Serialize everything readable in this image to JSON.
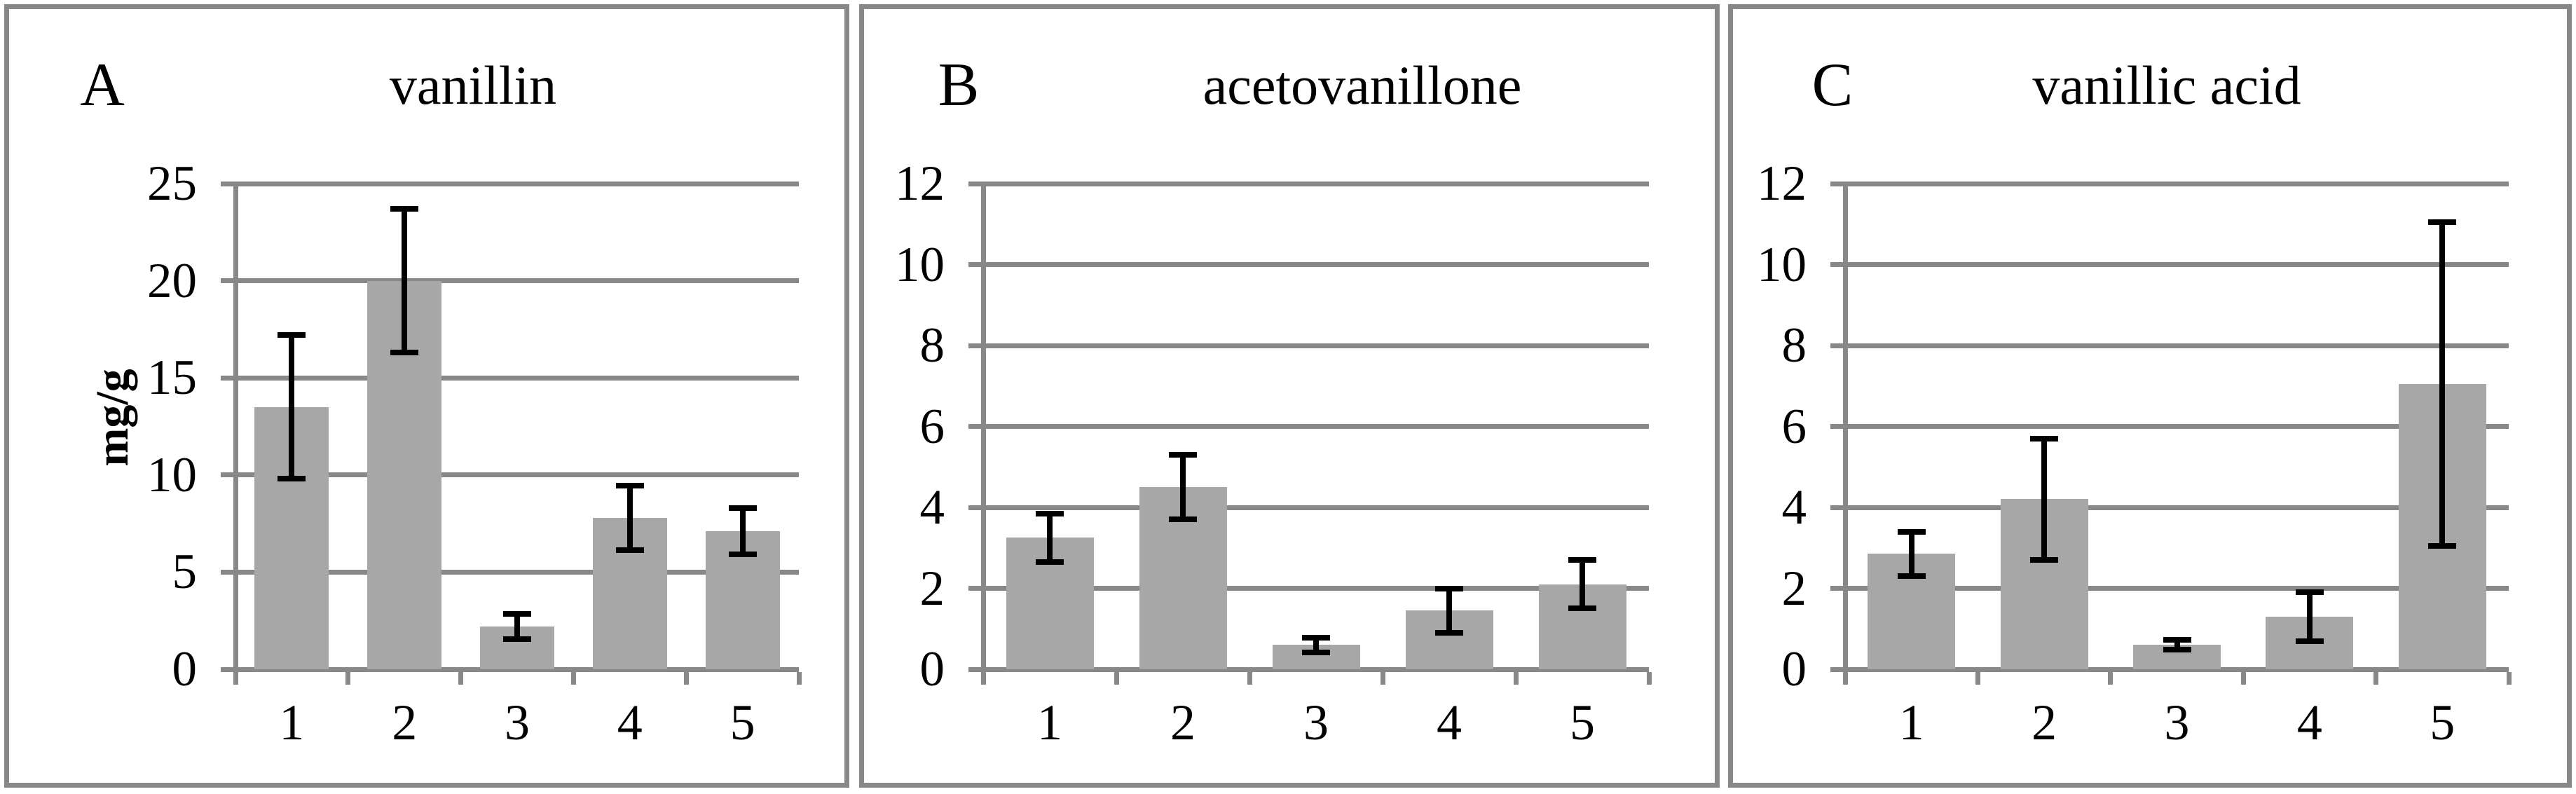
{
  "colors": {
    "bar_fill": "#a7a7a7",
    "grid": "#888888",
    "panel_border": "#888888",
    "error_bar": "#000000",
    "text": "#000000"
  },
  "chart_data": [
    {
      "type": "bar",
      "panel_label": "A",
      "title": "vanillin",
      "ylabel": "mg/g",
      "xlabel": "",
      "categories": [
        "1",
        "2",
        "3",
        "4",
        "5"
      ],
      "values": [
        13.5,
        20.0,
        2.2,
        7.8,
        7.1
      ],
      "errors": [
        3.7,
        3.7,
        0.65,
        1.65,
        1.2
      ],
      "ylim": [
        0,
        25
      ],
      "yticks": [
        0,
        5,
        10,
        15,
        20,
        25
      ],
      "grid": true,
      "legend": "none"
    },
    {
      "type": "bar",
      "panel_label": "B",
      "title": "acetovanillone",
      "ylabel": "",
      "xlabel": "",
      "categories": [
        "1",
        "2",
        "3",
        "4",
        "5"
      ],
      "values": [
        3.25,
        4.5,
        0.6,
        1.45,
        2.1
      ],
      "errors": [
        0.6,
        0.8,
        0.18,
        0.55,
        0.6
      ],
      "ylim": [
        0,
        12
      ],
      "yticks": [
        0,
        2,
        4,
        6,
        8,
        10,
        12
      ],
      "grid": true,
      "legend": "none"
    },
    {
      "type": "bar",
      "panel_label": "C",
      "title": "vanillic acid",
      "ylabel": "",
      "xlabel": "",
      "categories": [
        "1",
        "2",
        "3",
        "4",
        "5"
      ],
      "values": [
        2.85,
        4.2,
        0.6,
        1.3,
        7.05
      ],
      "errors": [
        0.55,
        1.5,
        0.12,
        0.6,
        4.0
      ],
      "ylim": [
        0,
        12
      ],
      "yticks": [
        0,
        2,
        4,
        6,
        8,
        10,
        12
      ],
      "grid": true,
      "legend": "none"
    }
  ]
}
